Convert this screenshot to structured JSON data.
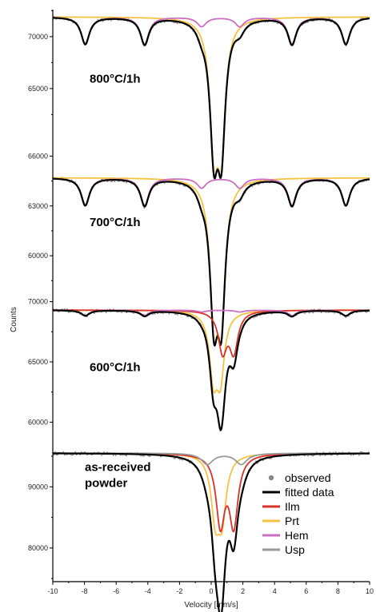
{
  "chart_data": {
    "type": "line",
    "xlabel": "Velocity  [mm/s]",
    "ylabel": "Counts",
    "xlim": [
      -10,
      10
    ],
    "x_ticks": [
      -10,
      -8,
      -6,
      -4,
      -2,
      0,
      2,
      4,
      6,
      8,
      10
    ],
    "grid": false,
    "legend": {
      "placement": "bottom-right",
      "entries": [
        {
          "label": "observed",
          "color": "#888888",
          "kind": "marker"
        },
        {
          "label": "fitted data",
          "color": "#000000",
          "kind": "line"
        },
        {
          "label": "Ilm",
          "color": "#d9312b",
          "kind": "line"
        },
        {
          "label": "Prt",
          "color": "#f5c242",
          "kind": "line"
        },
        {
          "label": "Hem",
          "color": "#cc6fc0",
          "kind": "line"
        },
        {
          "label": "Usp",
          "color": "#9a9a9a",
          "kind": "line"
        }
      ]
    },
    "colors": {
      "observed": "#8a8a8a",
      "fitted": "#000000",
      "Ilm": "#d9312b",
      "Prt": "#f5c242",
      "Hem": "#cc6fc0",
      "Usp": "#9a9a9a"
    },
    "panels": [
      {
        "label": "800°C/1h",
        "y_ticks": [
          65000,
          70000
        ],
        "ylim": [
          59300,
          72600
        ],
        "baseline": 71900,
        "components": [
          {
            "name": "Prt",
            "peaks": [
              {
                "x": 0.17,
                "depth": 11700,
                "w": 0.3
              },
              {
                "x": 0.64,
                "depth": 11700,
                "w": 0.3
              }
            ]
          },
          {
            "name": "Hem",
            "peaks": [
              {
                "x": -7.95,
                "depth": 2600,
                "w": 0.32
              },
              {
                "x": -4.2,
                "depth": 2600,
                "w": 0.32
              },
              {
                "x": -0.6,
                "depth": 900,
                "w": 0.35
              },
              {
                "x": 1.8,
                "depth": 900,
                "w": 0.35
              },
              {
                "x": 5.1,
                "depth": 2600,
                "w": 0.32
              },
              {
                "x": 8.5,
                "depth": 2600,
                "w": 0.32
              }
            ]
          }
        ]
      },
      {
        "label": "700°C/1h",
        "y_ticks": [
          60000,
          63000,
          66000
        ],
        "ylim": [
          57600,
          66500
        ],
        "baseline": 64700,
        "components": [
          {
            "name": "Prt",
            "peaks": [
              {
                "x": 0.17,
                "depth": 7600,
                "w": 0.3
              },
              {
                "x": 0.64,
                "depth": 7600,
                "w": 0.3
              }
            ]
          },
          {
            "name": "Hem",
            "peaks": [
              {
                "x": -7.95,
                "depth": 1650,
                "w": 0.32
              },
              {
                "x": -4.2,
                "depth": 1650,
                "w": 0.32
              },
              {
                "x": -0.6,
                "depth": 600,
                "w": 0.35
              },
              {
                "x": 1.8,
                "depth": 600,
                "w": 0.35
              },
              {
                "x": 5.1,
                "depth": 1650,
                "w": 0.32
              },
              {
                "x": 8.5,
                "depth": 1650,
                "w": 0.32
              }
            ]
          }
        ]
      },
      {
        "label": "600°C/1h",
        "y_ticks": [
          60000,
          65000,
          70000
        ],
        "ylim": [
          58700,
          70500
        ],
        "baseline": 69300,
        "components": [
          {
            "name": "Prt",
            "peaks": [
              {
                "x": 0.14,
                "depth": 5100,
                "w": 0.3
              },
              {
                "x": 0.58,
                "depth": 5100,
                "w": 0.3
              }
            ]
          },
          {
            "name": "Ilm",
            "peaks": [
              {
                "x": 0.72,
                "depth": 3300,
                "w": 0.32
              },
              {
                "x": 1.42,
                "depth": 3300,
                "w": 0.32
              }
            ]
          },
          {
            "name": "Hem",
            "peaks": [
              {
                "x": -7.95,
                "depth": 450,
                "w": 0.32
              },
              {
                "x": -4.2,
                "depth": 450,
                "w": 0.32
              },
              {
                "x": -0.6,
                "depth": 150,
                "w": 0.35
              },
              {
                "x": 1.8,
                "depth": 150,
                "w": 0.35
              },
              {
                "x": 5.1,
                "depth": 450,
                "w": 0.32
              },
              {
                "x": 8.5,
                "depth": 450,
                "w": 0.32
              }
            ]
          }
        ]
      },
      {
        "label": "as-received\npowder",
        "y_ticks": [
          80000,
          90000
        ],
        "ylim": [
          74500,
          98000
        ],
        "baseline": 95500,
        "components": [
          {
            "name": "Prt",
            "peaks": [
              {
                "x": 0.26,
                "depth": 9500,
                "w": 0.32
              },
              {
                "x": 0.68,
                "depth": 9500,
                "w": 0.32
              }
            ]
          },
          {
            "name": "Ilm",
            "peaks": [
              {
                "x": 0.58,
                "depth": 11300,
                "w": 0.33
              },
              {
                "x": 1.42,
                "depth": 11300,
                "w": 0.33
              }
            ]
          },
          {
            "name": "Usp",
            "peaks": [
              {
                "x": -0.25,
                "depth": 1800,
                "w": 0.45
              },
              {
                "x": 1.9,
                "depth": 1800,
                "w": 0.45
              }
            ]
          }
        ]
      }
    ]
  }
}
